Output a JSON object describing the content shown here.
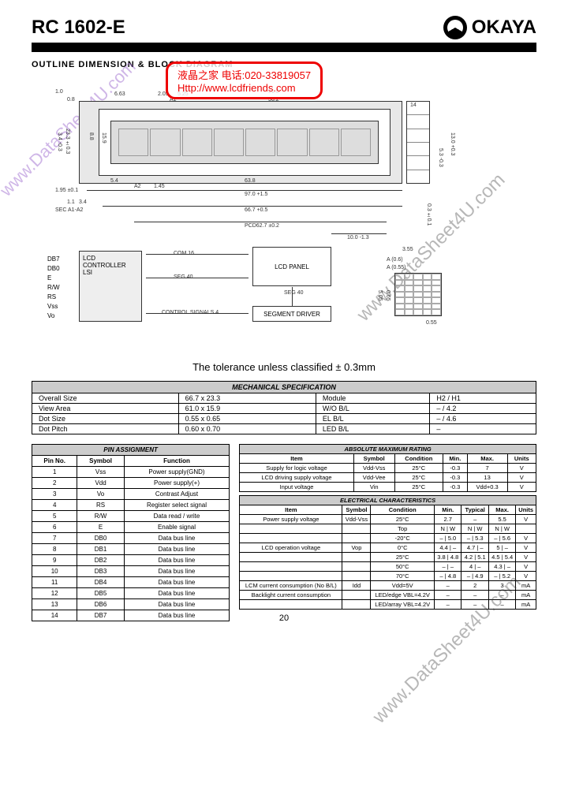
{
  "header": {
    "product": "RC 1602-E",
    "brand": "OKAYA"
  },
  "section_title": "OUTLINE DIMENSION & BLOCK DIAGRAM",
  "stamp": {
    "line1": "液晶之家  电话:020-33819057",
    "line2": "Http://www.lcdfriends.com"
  },
  "watermark": "www.DataSheet4U.com",
  "tolerance": "The tolerance unless classified ± 0.3mm",
  "diagram": {
    "lcd_panel": "LCD PANEL",
    "controller": "LCD\nCONTROLLER\nLSI",
    "segment_driver": "SEGMENT DRIVER",
    "signals": [
      "DB7",
      "DB0",
      "E",
      "R/W",
      "RS",
      "Vss",
      "Vo"
    ],
    "com": "COM 16",
    "seg1": "SEG 40",
    "seg2": "SEG 40",
    "control": "CONTROL SIGNALS 4",
    "dims": [
      "1.0",
      "0.8",
      "1.65",
      "6.63",
      "2.05",
      "5.25",
      "A1",
      "51.0",
      "56.2",
      "14",
      "3.4 -0.3",
      "23.3 ±0.3",
      "8.8",
      "15.9",
      "11.65",
      "5.4",
      "A2",
      "1.45",
      "63.8",
      "1.95 ±0.1",
      "1.1",
      "3.4",
      "SEC A1-A2",
      "97.0 +1.5",
      "66.7 +0.5",
      "PCD62.7 ±0.2",
      "10.0 -1.3",
      "5.3 -0.3",
      "13.0 +0.3",
      "0.3 ±0.1",
      "3.55",
      "A (0.6)",
      "A (0.55)",
      "5.05",
      "0.65",
      "0.55"
    ]
  },
  "mechanical": {
    "title": "MECHANICAL SPECIFICATION",
    "rows": [
      [
        "Overall Size",
        "66.7 x 23.3",
        "Module",
        "H2 / H1"
      ],
      [
        "View Area",
        "61.0 x 15.9",
        "W/O B/L",
        "– / 4.2"
      ],
      [
        "Dot Size",
        "0.55 x 0.65",
        "EL B/L",
        "– / 4.6"
      ],
      [
        "Dot Pitch",
        "0.60 x 0.70",
        "LED B/L",
        "–"
      ]
    ]
  },
  "pin_assignment": {
    "title": "PIN ASSIGNMENT",
    "headers": [
      "Pin No.",
      "Symbol",
      "Function"
    ],
    "rows": [
      [
        "1",
        "Vss",
        "Power supply(GND)"
      ],
      [
        "2",
        "Vdd",
        "Power supply(+)"
      ],
      [
        "3",
        "Vo",
        "Contrast Adjust"
      ],
      [
        "4",
        "RS",
        "Register select signal"
      ],
      [
        "5",
        "R/W",
        "Data read / write"
      ],
      [
        "6",
        "E",
        "Enable signal"
      ],
      [
        "7",
        "DB0",
        "Data bus line"
      ],
      [
        "8",
        "DB1",
        "Data bus line"
      ],
      [
        "9",
        "DB2",
        "Data bus line"
      ],
      [
        "10",
        "DB3",
        "Data bus line"
      ],
      [
        "11",
        "DB4",
        "Data bus line"
      ],
      [
        "12",
        "DB5",
        "Data bus line"
      ],
      [
        "13",
        "DB6",
        "Data bus line"
      ],
      [
        "14",
        "DB7",
        "Data bus line"
      ]
    ]
  },
  "abs_max": {
    "title": "ABSOLUTE MAXIMUM RATING",
    "headers": [
      "Item",
      "Symbol",
      "Condition",
      "Min.",
      "Max.",
      "Units"
    ],
    "rows": [
      [
        "Supply for logic voltage",
        "Vdd-Vss",
        "25°C",
        "-0.3",
        "7",
        "V"
      ],
      [
        "LCD driving supply voltage",
        "Vdd-Vee",
        "25°C",
        "-0.3",
        "13",
        "V"
      ],
      [
        "Input voltage",
        "Vin",
        "25°C",
        "-0.3",
        "Vdd+0.3",
        "V"
      ]
    ]
  },
  "electrical": {
    "title": "ELECTRICAL CHARACTERISTICS",
    "headers": [
      "Item",
      "Symbol",
      "Condition",
      "Min.",
      "Typical",
      "Max.",
      "Units"
    ],
    "rows": [
      [
        "Power supply voltage",
        "Vdd-Vss",
        "25°C",
        "2.7",
        "–",
        "5.5",
        "V"
      ],
      [
        "",
        "",
        "Top",
        "N | W",
        "N | W",
        "N | W",
        ""
      ],
      [
        "",
        "",
        "-20°C",
        "– | 5.0",
        "– | 5.3",
        "– | 5.6",
        "V"
      ],
      [
        "LCD operation voltage",
        "Vop",
        "0°C",
        "4.4 | –",
        "4.7 | –",
        "5 | –",
        "V"
      ],
      [
        "",
        "",
        "25°C",
        "3.8 | 4.8",
        "4.2 | 5.1",
        "4.5 | 5.4",
        "V"
      ],
      [
        "",
        "",
        "50°C",
        "– | –",
        "4 | –",
        "4.3 | –",
        "V"
      ],
      [
        "",
        "",
        "70°C",
        "– | 4.8",
        "– | 4.9",
        "– | 5.2",
        "V"
      ],
      [
        "LCM current consumption (No B/L)",
        "Idd",
        "Vdd=5V",
        "–",
        "2",
        "3",
        "mA"
      ],
      [
        "Backlight current consumption",
        "",
        "LED/edge VBL=4.2V",
        "–",
        "–",
        "–",
        "mA"
      ],
      [
        "",
        "",
        "LED/array VBL=4.2V",
        "–",
        "–",
        "–",
        "mA"
      ]
    ]
  },
  "page_number": "20"
}
